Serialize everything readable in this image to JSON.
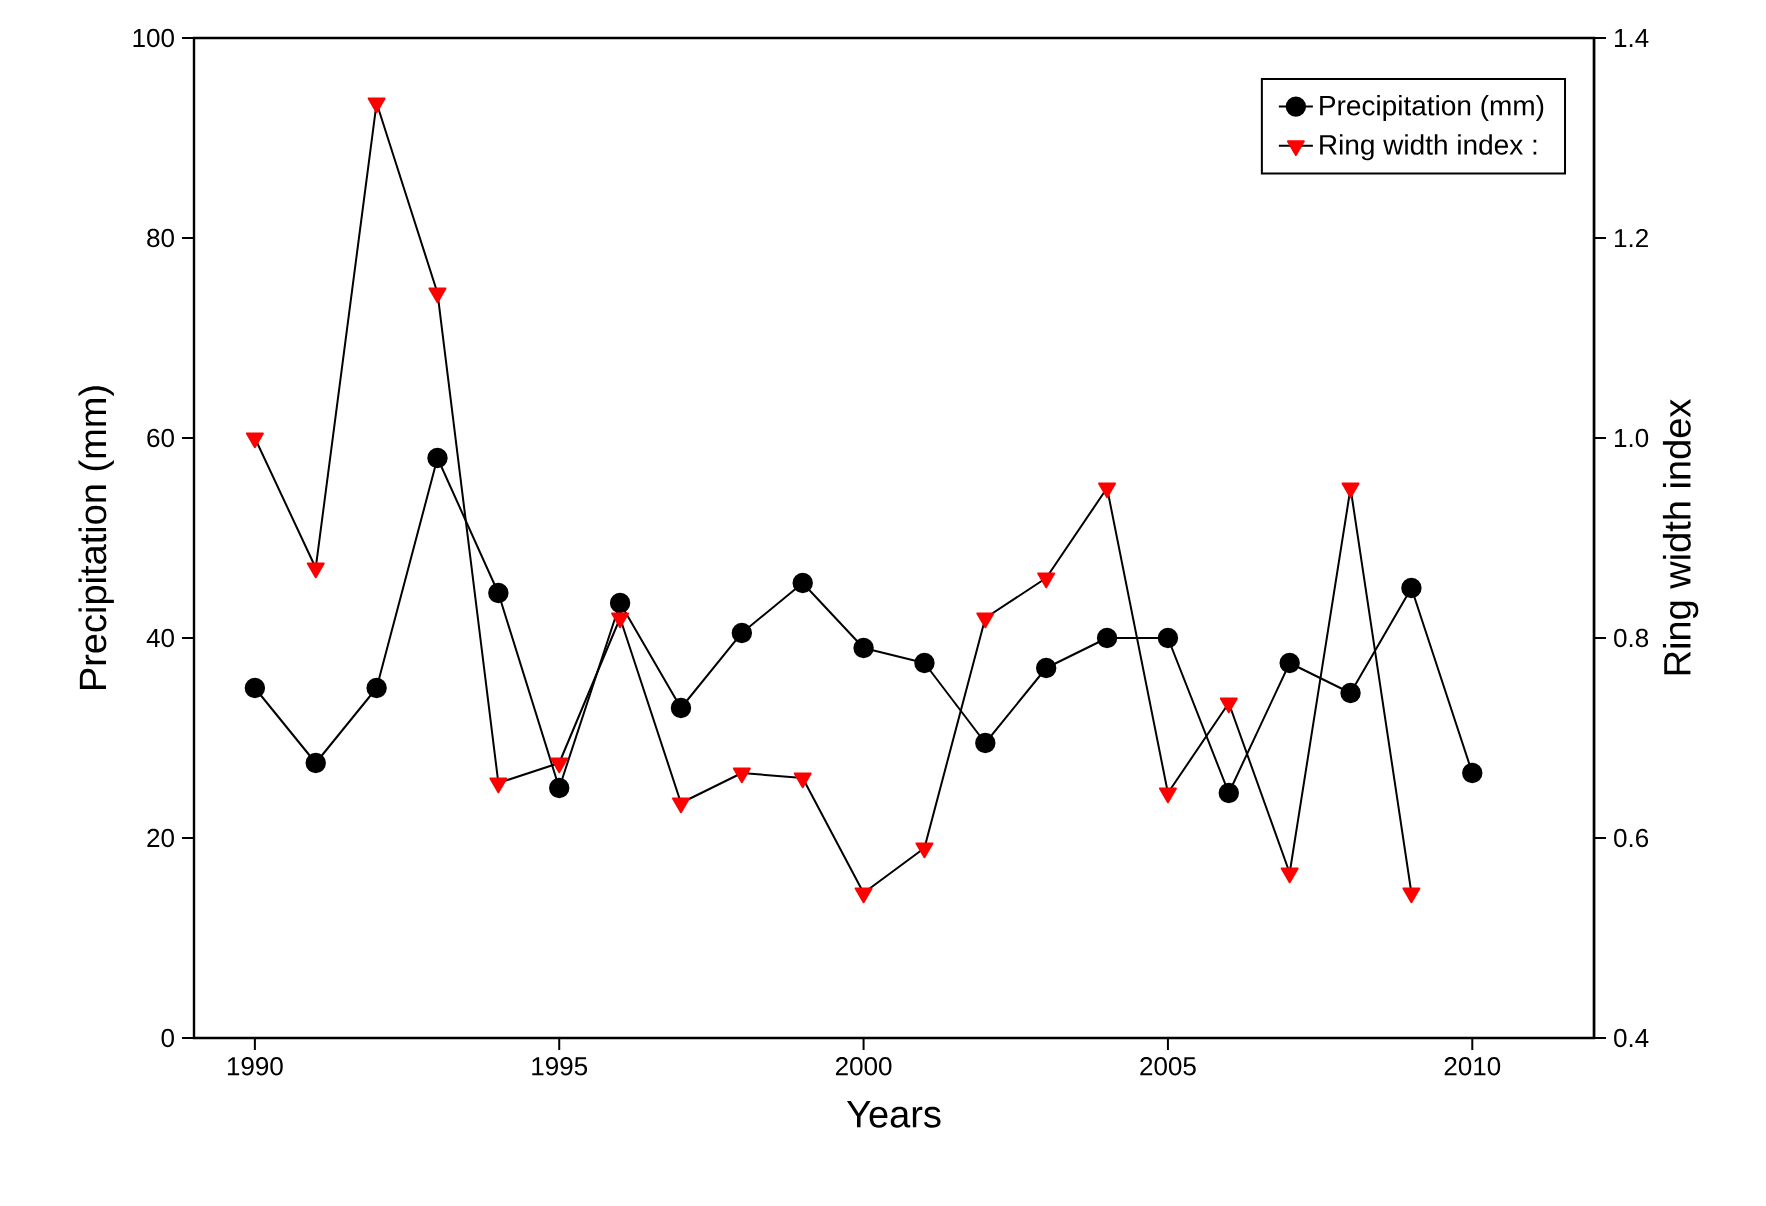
{
  "chart_data": {
    "type": "line",
    "xlabel": "Years",
    "ylabel": "Precipitation (mm)",
    "y2label": "Ring width index",
    "x": [
      1990,
      1991,
      1992,
      1993,
      1994,
      1995,
      1996,
      1997,
      1998,
      1999,
      2000,
      2001,
      2002,
      2003,
      2004,
      2005,
      2006,
      2007,
      2008,
      2009,
      2010
    ],
    "series": [
      {
        "name": "Precipitation (mm)",
        "color": "#000000",
        "marker": "circle",
        "values": [
          35,
          27.5,
          35,
          58,
          44.5,
          25,
          43.5,
          33,
          40.5,
          45.5,
          39,
          37.5,
          29.5,
          37,
          40,
          40,
          24.5,
          37.5,
          34.5,
          45,
          26.5
        ]
      },
      {
        "name": "Ring width index     :",
        "color": "#ff0000",
        "marker": "triangle",
        "axis": "y2",
        "values": [
          1.0,
          0.87,
          1.335,
          1.145,
          0.655,
          0.675,
          0.82,
          0.635,
          0.665,
          0.66,
          0.545,
          0.59,
          0.82,
          0.86,
          0.95,
          0.645,
          0.735,
          0.565,
          0.95,
          0.545,
          null
        ]
      }
    ],
    "xlim": [
      1989,
      2012
    ],
    "xticks": [
      1990,
      1995,
      2000,
      2005,
      2010
    ],
    "ylim": [
      0,
      100
    ],
    "yticks": [
      0,
      20,
      40,
      60,
      80,
      100
    ],
    "y2lim": [
      0.4,
      1.4
    ],
    "y2ticks": [
      0.4,
      0.6,
      0.8,
      {
        "value": 1.0,
        "label": "1.0"
      },
      1.2,
      1.4
    ],
    "legend": "top right",
    "grid": false,
    "line_style": "solid"
  }
}
